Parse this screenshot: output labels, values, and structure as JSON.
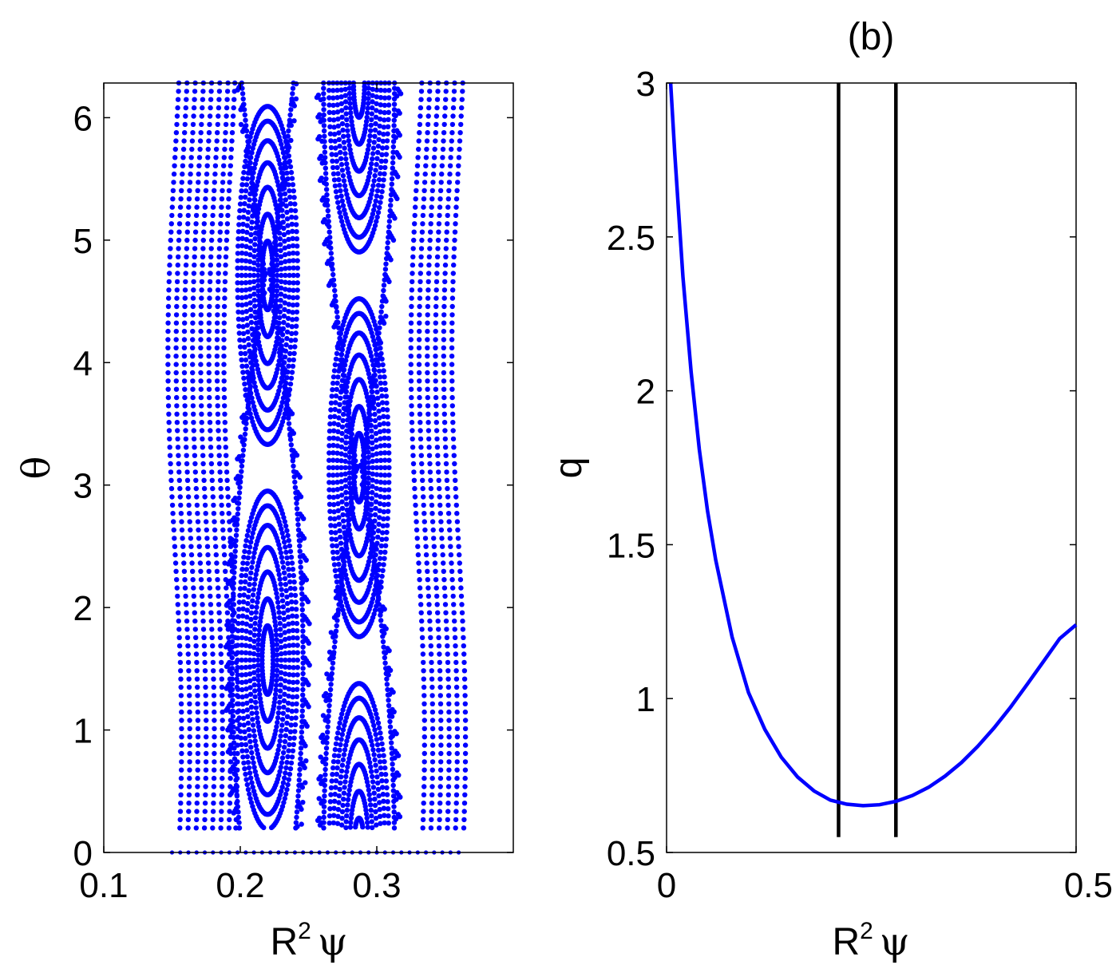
{
  "colors": {
    "curve": "#0000ff",
    "lines": "#000000",
    "axes": "#000000",
    "background": "#ffffff"
  },
  "chart_data": [
    {
      "panel": "a",
      "type": "scatter",
      "title": "",
      "xlabel": "R",
      "xlabel_sup": "2",
      "xlabel_greek": "ψ",
      "ylabel": "θ",
      "xlim": [
        0.1,
        0.4
      ],
      "ylim": [
        0,
        6.283
      ],
      "xticks": [
        0.1,
        0.2,
        0.3
      ],
      "xtick_labels": [
        "0.1",
        "0.2",
        "0.3"
      ],
      "yticks": [
        0,
        1,
        2,
        3,
        4,
        5,
        6
      ],
      "ytick_labels": [
        "0",
        "1",
        "2",
        "3",
        "4",
        "5",
        "6"
      ],
      "description_series": "Poincare surface of section: island chains centred at R2psi≈0.22 (θ≈π/2, 3π/2) and R2psi≈0.287 (θ≈0, π, 2π), X-points at R2psi≈0.22 (θ≈0, π) and ≈0.287 (θ≈π/2, 3π/2)",
      "islands": [
        {
          "x": 0.22,
          "theta": 1.571
        },
        {
          "x": 0.22,
          "theta": 4.712
        },
        {
          "x": 0.287,
          "theta": 3.142
        },
        {
          "x": 0.287,
          "theta": 0.0
        },
        {
          "x": 0.287,
          "theta": 6.283
        }
      ],
      "seed_points_r2psi": [
        0.15,
        0.156,
        0.162,
        0.168,
        0.174,
        0.18,
        0.186,
        0.192,
        0.198,
        0.204,
        0.21,
        0.216,
        0.222,
        0.228,
        0.234,
        0.24,
        0.246,
        0.252,
        0.258,
        0.264,
        0.27,
        0.276,
        0.282,
        0.288,
        0.294,
        0.3,
        0.306,
        0.312,
        0.318,
        0.324,
        0.33,
        0.336,
        0.342,
        0.348,
        0.354,
        0.36
      ]
    },
    {
      "panel": "b",
      "type": "line",
      "title": "(b)",
      "xlabel": "R",
      "xlabel_sup": "2",
      "xlabel_greek": "ψ",
      "ylabel": "q",
      "xlim": [
        0,
        0.5
      ],
      "ylim": [
        0.5,
        3
      ],
      "xticks": [
        0,
        0.5
      ],
      "xtick_labels": [
        "0",
        "0.5"
      ],
      "yticks": [
        0.5,
        1,
        1.5,
        2,
        2.5,
        3
      ],
      "ytick_labels": [
        "0.5",
        "1",
        "1.5",
        "2",
        "2.5",
        "3"
      ],
      "series": [
        {
          "x": [
            0.005,
            0.01,
            0.02,
            0.03,
            0.04,
            0.05,
            0.06,
            0.08,
            0.1,
            0.12,
            0.14,
            0.16,
            0.18,
            0.2,
            0.22,
            0.24,
            0.26,
            0.28,
            0.3,
            0.32,
            0.34,
            0.36,
            0.38,
            0.4,
            0.42,
            0.44,
            0.46,
            0.48,
            0.5
          ],
          "y": [
            3.0,
            2.77,
            2.37,
            2.06,
            1.81,
            1.61,
            1.45,
            1.2,
            1.02,
            0.9,
            0.81,
            0.745,
            0.7,
            0.67,
            0.657,
            0.652,
            0.655,
            0.666,
            0.685,
            0.712,
            0.748,
            0.792,
            0.845,
            0.905,
            0.972,
            1.045,
            1.12,
            1.195,
            1.24
          ]
        }
      ],
      "vertical_lines": [
        {
          "x": 0.21,
          "y_range": [
            0.55,
            3.0
          ]
        },
        {
          "x": 0.28,
          "y_range": [
            0.55,
            3.0
          ]
        }
      ]
    }
  ]
}
